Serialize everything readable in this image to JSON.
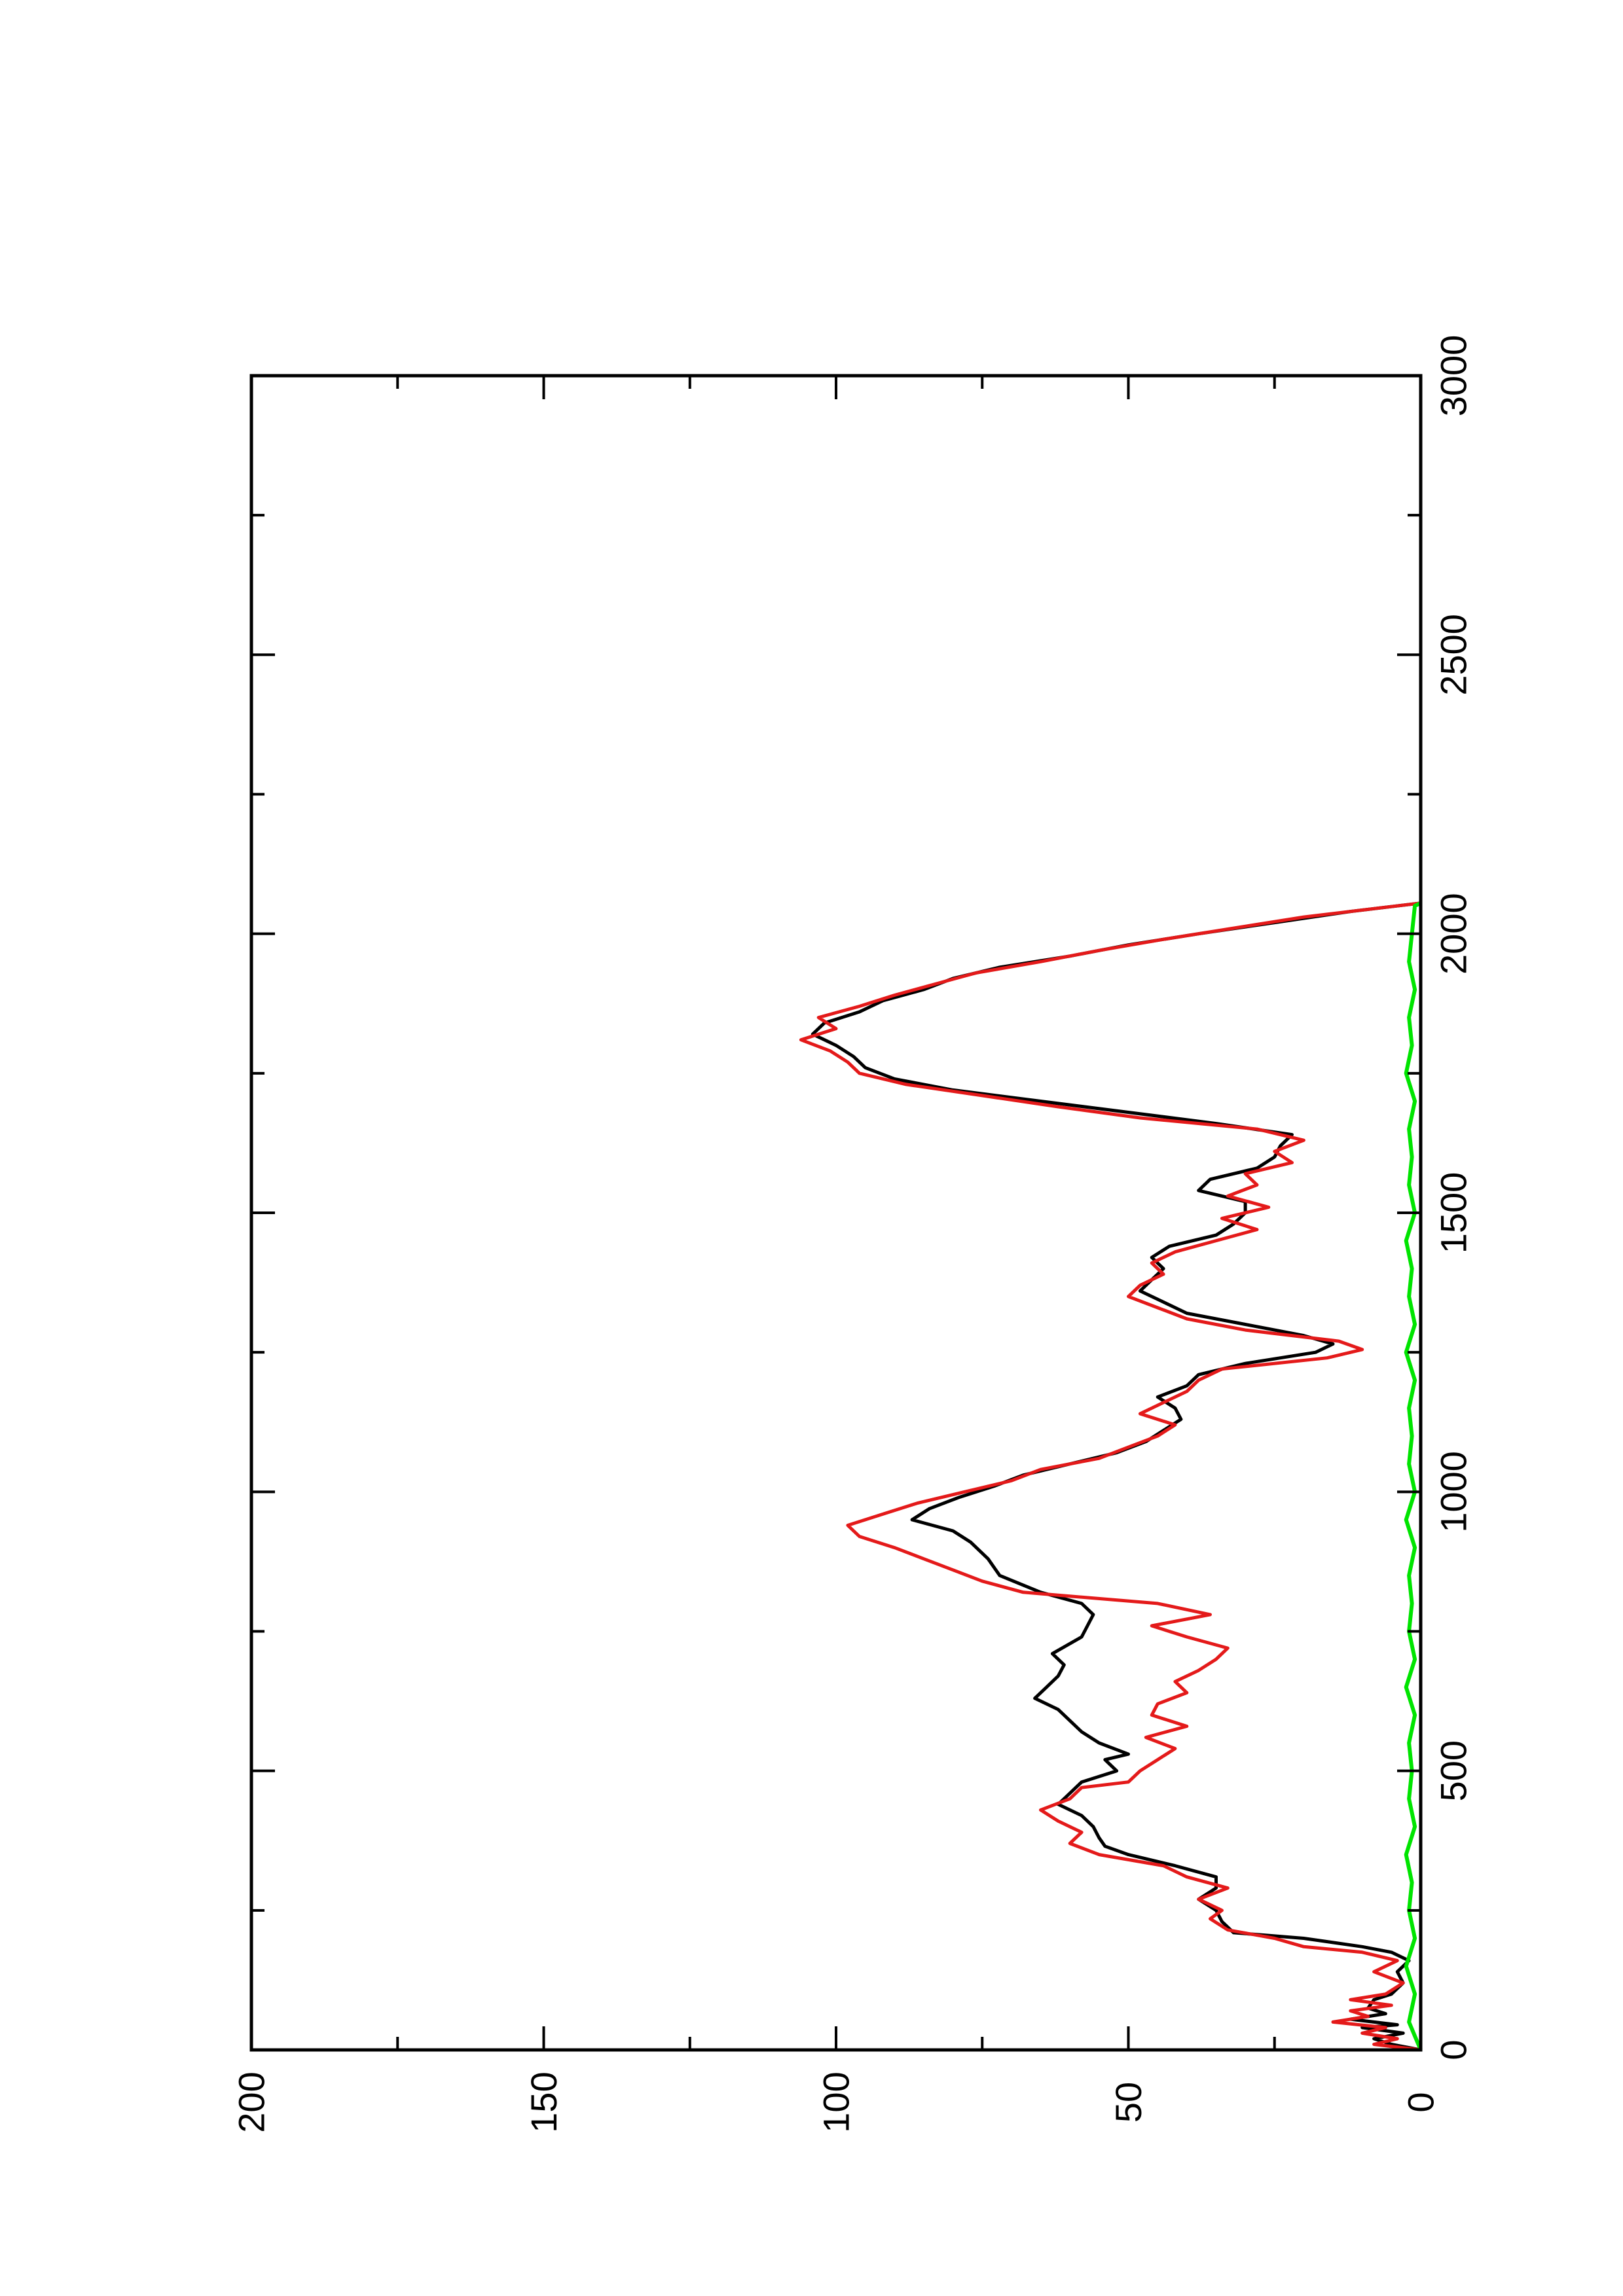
{
  "chart_data": {
    "type": "line",
    "title": "",
    "xlabel": "",
    "ylabel": "",
    "orientation": "rotated 90 degrees counter-clockwise (page is a landscape plot printed on a portrait page)",
    "xlim": [
      0,
      3000
    ],
    "ylim": [
      0,
      200
    ],
    "x_ticks": [
      0,
      500,
      1000,
      1500,
      2000,
      2500,
      3000
    ],
    "y_ticks": [
      0,
      50,
      100,
      150,
      200
    ],
    "grid": false,
    "legend": "none",
    "series": [
      {
        "color": "#000000",
        "points": [
          [
            0,
            0
          ],
          [
            10,
            5
          ],
          [
            20,
            8
          ],
          [
            30,
            3
          ],
          [
            40,
            10
          ],
          [
            45,
            4
          ],
          [
            55,
            12
          ],
          [
            65,
            6
          ],
          [
            75,
            9
          ],
          [
            90,
            8
          ],
          [
            100,
            5
          ],
          [
            120,
            3
          ],
          [
            140,
            4
          ],
          [
            160,
            2
          ],
          [
            175,
            5
          ],
          [
            185,
            10
          ],
          [
            200,
            20
          ],
          [
            210,
            32
          ],
          [
            230,
            34
          ],
          [
            250,
            35
          ],
          [
            270,
            38
          ],
          [
            290,
            35
          ],
          [
            310,
            35
          ],
          [
            330,
            42
          ],
          [
            350,
            50
          ],
          [
            365,
            54
          ],
          [
            380,
            55
          ],
          [
            400,
            56
          ],
          [
            420,
            58
          ],
          [
            440,
            62
          ],
          [
            460,
            60
          ],
          [
            480,
            58
          ],
          [
            490,
            55
          ],
          [
            500,
            52
          ],
          [
            520,
            54
          ],
          [
            530,
            50
          ],
          [
            550,
            55
          ],
          [
            570,
            58
          ],
          [
            590,
            60
          ],
          [
            610,
            62
          ],
          [
            630,
            66
          ],
          [
            650,
            64
          ],
          [
            670,
            62
          ],
          [
            690,
            61
          ],
          [
            710,
            63
          ],
          [
            740,
            58
          ],
          [
            760,
            57
          ],
          [
            780,
            56
          ],
          [
            800,
            58
          ],
          [
            820,
            65
          ],
          [
            850,
            72
          ],
          [
            880,
            74
          ],
          [
            910,
            77
          ],
          [
            930,
            80
          ],
          [
            950,
            87
          ],
          [
            970,
            84
          ],
          [
            990,
            79
          ],
          [
            1010,
            73
          ],
          [
            1030,
            68
          ],
          [
            1050,
            60
          ],
          [
            1070,
            52
          ],
          [
            1090,
            47
          ],
          [
            1110,
            44
          ],
          [
            1130,
            41
          ],
          [
            1150,
            42
          ],
          [
            1170,
            45
          ],
          [
            1190,
            40
          ],
          [
            1210,
            38
          ],
          [
            1230,
            30
          ],
          [
            1250,
            18
          ],
          [
            1265,
            15
          ],
          [
            1280,
            20
          ],
          [
            1300,
            30
          ],
          [
            1320,
            40
          ],
          [
            1340,
            44
          ],
          [
            1360,
            48
          ],
          [
            1380,
            46
          ],
          [
            1400,
            44
          ],
          [
            1420,
            46
          ],
          [
            1440,
            43
          ],
          [
            1460,
            35
          ],
          [
            1480,
            32
          ],
          [
            1500,
            30
          ],
          [
            1520,
            30
          ],
          [
            1540,
            38
          ],
          [
            1560,
            36
          ],
          [
            1580,
            28
          ],
          [
            1600,
            25
          ],
          [
            1620,
            24
          ],
          [
            1640,
            22
          ],
          [
            1660,
            35
          ],
          [
            1680,
            50
          ],
          [
            1700,
            65
          ],
          [
            1720,
            80
          ],
          [
            1740,
            90
          ],
          [
            1760,
            95
          ],
          [
            1780,
            97
          ],
          [
            1800,
            100
          ],
          [
            1820,
            104
          ],
          [
            1840,
            102
          ],
          [
            1860,
            96
          ],
          [
            1880,
            92
          ],
          [
            1900,
            85
          ],
          [
            1920,
            80
          ],
          [
            1940,
            72
          ],
          [
            1960,
            60
          ],
          [
            1980,
            50
          ],
          [
            2000,
            38
          ],
          [
            2020,
            25
          ],
          [
            2040,
            12
          ],
          [
            2055,
            0
          ]
        ]
      },
      {
        "color": "#e41a1a",
        "points": [
          [
            0,
            0
          ],
          [
            10,
            8
          ],
          [
            20,
            4
          ],
          [
            30,
            10
          ],
          [
            40,
            6
          ],
          [
            50,
            15
          ],
          [
            60,
            9
          ],
          [
            70,
            12
          ],
          [
            80,
            5
          ],
          [
            90,
            12
          ],
          [
            100,
            6
          ],
          [
            120,
            3
          ],
          [
            140,
            8
          ],
          [
            160,
            4
          ],
          [
            175,
            10
          ],
          [
            185,
            20
          ],
          [
            200,
            25
          ],
          [
            215,
            33
          ],
          [
            235,
            36
          ],
          [
            250,
            34
          ],
          [
            270,
            38
          ],
          [
            290,
            33
          ],
          [
            310,
            40
          ],
          [
            330,
            44
          ],
          [
            350,
            55
          ],
          [
            370,
            60
          ],
          [
            390,
            58
          ],
          [
            410,
            62
          ],
          [
            430,
            65
          ],
          [
            450,
            60
          ],
          [
            470,
            58
          ],
          [
            480,
            50
          ],
          [
            500,
            48
          ],
          [
            520,
            45
          ],
          [
            540,
            42
          ],
          [
            560,
            47
          ],
          [
            580,
            40
          ],
          [
            600,
            46
          ],
          [
            620,
            45
          ],
          [
            640,
            40
          ],
          [
            660,
            42
          ],
          [
            680,
            38
          ],
          [
            700,
            35
          ],
          [
            720,
            33
          ],
          [
            740,
            40
          ],
          [
            760,
            46
          ],
          [
            780,
            36
          ],
          [
            800,
            45
          ],
          [
            820,
            68
          ],
          [
            840,
            75
          ],
          [
            860,
            80
          ],
          [
            880,
            85
          ],
          [
            900,
            90
          ],
          [
            920,
            96
          ],
          [
            940,
            98
          ],
          [
            960,
            92
          ],
          [
            980,
            86
          ],
          [
            1000,
            78
          ],
          [
            1020,
            70
          ],
          [
            1040,
            65
          ],
          [
            1060,
            55
          ],
          [
            1080,
            50
          ],
          [
            1100,
            45
          ],
          [
            1120,
            42
          ],
          [
            1140,
            48
          ],
          [
            1160,
            44
          ],
          [
            1180,
            40
          ],
          [
            1200,
            38
          ],
          [
            1220,
            34
          ],
          [
            1240,
            16
          ],
          [
            1255,
            10
          ],
          [
            1270,
            14
          ],
          [
            1290,
            30
          ],
          [
            1310,
            40
          ],
          [
            1330,
            45
          ],
          [
            1350,
            50
          ],
          [
            1370,
            48
          ],
          [
            1390,
            44
          ],
          [
            1410,
            46
          ],
          [
            1430,
            42
          ],
          [
            1450,
            35
          ],
          [
            1470,
            28
          ],
          [
            1490,
            34
          ],
          [
            1510,
            26
          ],
          [
            1530,
            33
          ],
          [
            1550,
            28
          ],
          [
            1570,
            30
          ],
          [
            1590,
            22
          ],
          [
            1610,
            25
          ],
          [
            1630,
            20
          ],
          [
            1650,
            28
          ],
          [
            1670,
            48
          ],
          [
            1690,
            62
          ],
          [
            1710,
            75
          ],
          [
            1730,
            88
          ],
          [
            1750,
            96
          ],
          [
            1770,
            98
          ],
          [
            1790,
            101
          ],
          [
            1810,
            106
          ],
          [
            1830,
            100
          ],
          [
            1850,
            103
          ],
          [
            1870,
            96
          ],
          [
            1890,
            90
          ],
          [
            1910,
            83
          ],
          [
            1930,
            76
          ],
          [
            1950,
            65
          ],
          [
            1970,
            55
          ],
          [
            1990,
            44
          ],
          [
            2010,
            32
          ],
          [
            2030,
            20
          ],
          [
            2045,
            8
          ],
          [
            2055,
            0
          ]
        ]
      },
      {
        "color": "#00e400",
        "points": [
          [
            0,
            0
          ],
          [
            50,
            2
          ],
          [
            100,
            1
          ],
          [
            150,
            2.5
          ],
          [
            200,
            1
          ],
          [
            250,
            2
          ],
          [
            300,
            1.5
          ],
          [
            350,
            2.5
          ],
          [
            400,
            1
          ],
          [
            450,
            2
          ],
          [
            500,
            1.5
          ],
          [
            550,
            2
          ],
          [
            600,
            1
          ],
          [
            650,
            2.5
          ],
          [
            700,
            1
          ],
          [
            750,
            2
          ],
          [
            800,
            1.5
          ],
          [
            850,
            2
          ],
          [
            900,
            1
          ],
          [
            950,
            2.5
          ],
          [
            1000,
            1
          ],
          [
            1050,
            2
          ],
          [
            1100,
            1.5
          ],
          [
            1150,
            2
          ],
          [
            1200,
            1
          ],
          [
            1250,
            2.5
          ],
          [
            1300,
            1
          ],
          [
            1350,
            2
          ],
          [
            1400,
            1.5
          ],
          [
            1450,
            2.5
          ],
          [
            1500,
            1
          ],
          [
            1550,
            2
          ],
          [
            1600,
            1.5
          ],
          [
            1650,
            2
          ],
          [
            1700,
            1
          ],
          [
            1750,
            2.5
          ],
          [
            1800,
            1.5
          ],
          [
            1850,
            2
          ],
          [
            1900,
            1
          ],
          [
            1950,
            2
          ],
          [
            2000,
            1.5
          ],
          [
            2050,
            1
          ],
          [
            2055,
            0
          ]
        ]
      }
    ]
  }
}
